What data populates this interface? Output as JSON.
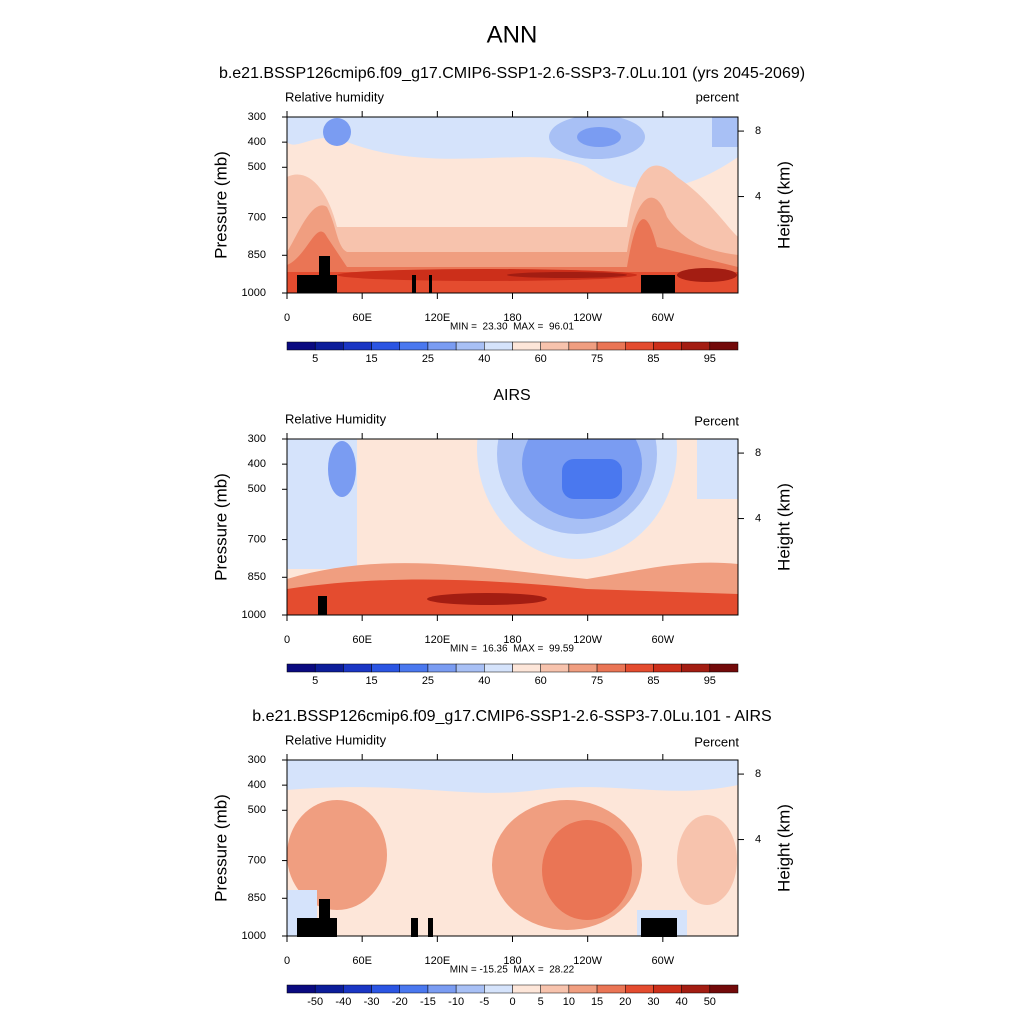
{
  "title": "ANN",
  "chart_data": [
    {
      "type": "contour",
      "title": "b.e21.BSSP126cmip6.f09_g17.CMIP6-SSP1-2.6-SSP3-7.0Lu.101 (yrs 2045-2069)",
      "left_label": "Relative humidity",
      "right_label": "percent",
      "ylabel": "Pressure (mb)",
      "y2label": "Height (km)",
      "xlim": [
        0,
        360
      ],
      "xticks": [
        0,
        {
          "value": 60,
          "label": "60E"
        },
        {
          "value": 120,
          "label": "120E"
        },
        180,
        {
          "value": 240,
          "label": "120W"
        },
        {
          "value": 300,
          "label": "60W"
        }
      ],
      "ylim": [
        1000,
        300
      ],
      "yticks": [
        300,
        400,
        500,
        700,
        850,
        1000
      ],
      "y2ticks": [
        4,
        8
      ],
      "stats": "MIN =  23.30  MAX =  96.01",
      "colorbar": {
        "colors": [
          "#0a0a80",
          "#0c1d9a",
          "#1a36c4",
          "#2b55e3",
          "#4a78ef",
          "#7a9cf2",
          "#a8c0f5",
          "#d5e3fb",
          "#fde6d9",
          "#f7c3ad",
          "#f09e80",
          "#ea7555",
          "#e44c2f",
          "#cc2f1a",
          "#a31d12",
          "#730a0a"
        ],
        "labels": [
          5,
          15,
          25,
          40,
          60,
          75,
          85,
          95
        ]
      }
    },
    {
      "type": "contour",
      "title": "AIRS",
      "left_label": "Relative Humidity",
      "right_label": "Percent",
      "ylabel": "Pressure (mb)",
      "y2label": "Height (km)",
      "xlim": [
        0,
        360
      ],
      "xticks": [
        0,
        {
          "value": 60,
          "label": "60E"
        },
        {
          "value": 120,
          "label": "120E"
        },
        180,
        {
          "value": 240,
          "label": "120W"
        },
        {
          "value": 300,
          "label": "60W"
        }
      ],
      "ylim": [
        1000,
        300
      ],
      "yticks": [
        300,
        400,
        500,
        700,
        850,
        1000
      ],
      "y2ticks": [
        4,
        8
      ],
      "stats": "MIN =  16.36  MAX =  99.59",
      "colorbar": {
        "colors": [
          "#0a0a80",
          "#0c1d9a",
          "#1a36c4",
          "#2b55e3",
          "#4a78ef",
          "#7a9cf2",
          "#a8c0f5",
          "#d5e3fb",
          "#fde6d9",
          "#f7c3ad",
          "#f09e80",
          "#ea7555",
          "#e44c2f",
          "#cc2f1a",
          "#a31d12",
          "#730a0a"
        ],
        "labels": [
          5,
          15,
          25,
          40,
          60,
          75,
          85,
          95
        ]
      }
    },
    {
      "type": "contour",
      "title": "b.e21.BSSP126cmip6.f09_g17.CMIP6-SSP1-2.6-SSP3-7.0Lu.101 - AIRS",
      "left_label": "Relative Humidity",
      "right_label": "Percent",
      "ylabel": "Pressure (mb)",
      "y2label": "Height (km)",
      "xlim": [
        0,
        360
      ],
      "xticks": [
        0,
        {
          "value": 60,
          "label": "60E"
        },
        {
          "value": 120,
          "label": "120E"
        },
        180,
        {
          "value": 240,
          "label": "120W"
        },
        {
          "value": 300,
          "label": "60W"
        }
      ],
      "ylim": [
        1000,
        300
      ],
      "yticks": [
        300,
        400,
        500,
        700,
        850,
        1000
      ],
      "y2ticks": [
        4,
        8
      ],
      "stats": "MIN = -15.25  MAX =  28.22",
      "colorbar": {
        "colors": [
          "#0a0a80",
          "#0c1d9a",
          "#1a36c4",
          "#2b55e3",
          "#4a78ef",
          "#7a9cf2",
          "#a8c0f5",
          "#d5e3fb",
          "#fde6d9",
          "#f7c3ad",
          "#f09e80",
          "#ea7555",
          "#e44c2f",
          "#cc2f1a",
          "#a31d12",
          "#730a0a"
        ],
        "labels": [
          -50,
          -40,
          -30,
          -20,
          -15,
          -10,
          -5,
          0,
          5,
          10,
          15,
          20,
          30,
          40,
          50
        ]
      }
    }
  ]
}
